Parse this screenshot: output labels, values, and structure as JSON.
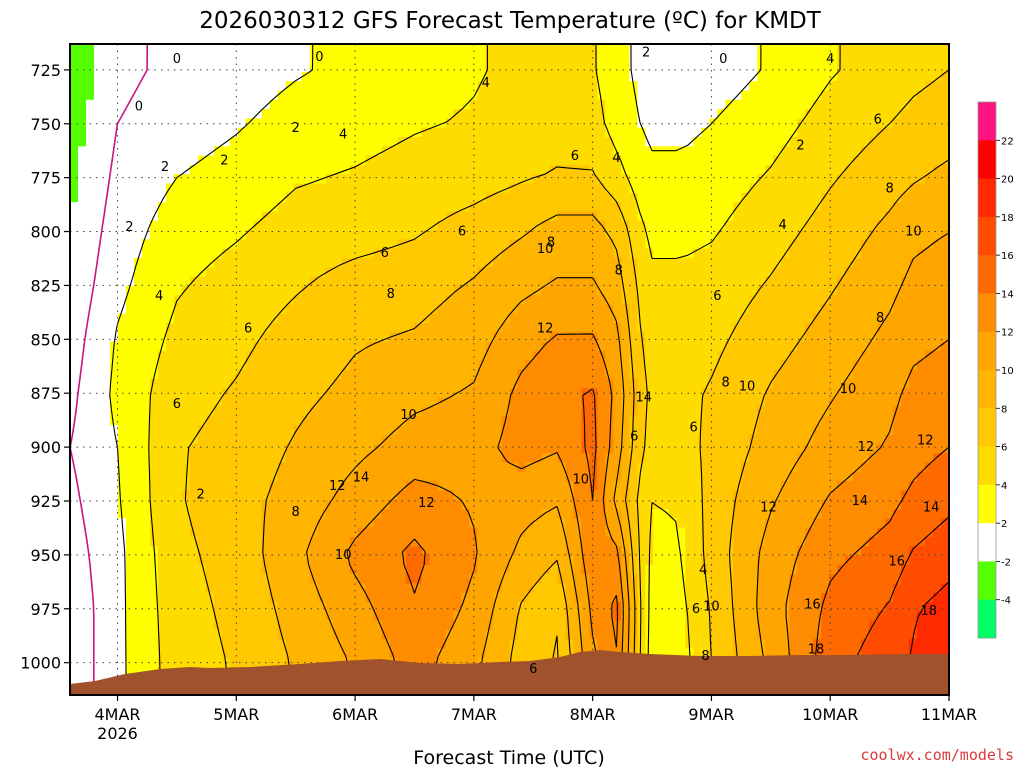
{
  "chart_data": {
    "type": "heatmap",
    "title": "2026030312 GFS Forecast Temperature (ºC) for KMDT",
    "xlabel": "Forecast Time (UTC)",
    "ylabel": "",
    "credit": "coolwx.com/models",
    "x_ticks": [
      {
        "day": 3.5,
        "label": "4MAR",
        "sub": "2026"
      },
      {
        "day": 4.5,
        "label": "5MAR",
        "sub": ""
      },
      {
        "day": 5.5,
        "label": "6MAR",
        "sub": ""
      },
      {
        "day": 6.5,
        "label": "7MAR",
        "sub": ""
      },
      {
        "day": 7.5,
        "label": "8MAR",
        "sub": ""
      },
      {
        "day": 8.5,
        "label": "9MAR",
        "sub": ""
      },
      {
        "day": 9.5,
        "label": "10MAR",
        "sub": ""
      },
      {
        "day": 10.5,
        "label": "11MAR",
        "sub": ""
      }
    ],
    "y_ticks": [
      "725",
      "750",
      "775",
      "800",
      "825",
      "850",
      "875",
      "900",
      "925",
      "950",
      "975",
      "1000"
    ],
    "y_values": [
      725,
      750,
      775,
      800,
      825,
      850,
      875,
      900,
      925,
      950,
      975,
      1000
    ],
    "xlim": [
      3.1,
      10.5
    ],
    "ylim": [
      713,
      1015
    ],
    "yaxis_inverted": true,
    "grid": true,
    "colorbar": {
      "labels": [
        "22",
        "20",
        "18",
        "16",
        "14",
        "12",
        "10",
        "8",
        "6",
        "4",
        "2",
        "-2",
        "-4"
      ],
      "colors": [
        "#ff1480",
        "#ff0000",
        "#ff2a00",
        "#ff4c00",
        "#ff6a00",
        "#ff8c00",
        "#ffa500",
        "#ffb400",
        "#ffc800",
        "#ffdc00",
        "#ffff00",
        "#ffffff",
        "#55ff00",
        "#00ff66"
      ]
    },
    "temperature_days": [
      3.1,
      3.5,
      4.0,
      4.5,
      5.0,
      5.5,
      6.0,
      6.5,
      6.9,
      7.2,
      7.5,
      7.7,
      7.9,
      8.0,
      8.25,
      8.5,
      9.0,
      9.5,
      10.0,
      10.2,
      10.5
    ],
    "temperature_levels": [
      725,
      750,
      775,
      800,
      825,
      850,
      875,
      900,
      925,
      950,
      975,
      1000
    ],
    "temperature_celsius": [
      [
        -3.5,
        -0.5,
        0.5,
        1.0,
        1.8,
        2.5,
        3.2,
        3.8,
        4.5,
        4.8,
        4.2,
        2.8,
        1.5,
        1.0,
        0.5,
        1.0,
        2.2,
        3.8,
        5.0,
        5.5,
        6.0
      ],
      [
        -3.0,
        0.0,
        1.0,
        1.8,
        2.8,
        3.2,
        3.8,
        4.2,
        4.8,
        5.2,
        4.8,
        3.2,
        2.0,
        1.5,
        1.5,
        2.0,
        3.2,
        4.8,
        6.0,
        6.5,
        7.0
      ],
      [
        -2.5,
        0.5,
        2.0,
        2.8,
        3.8,
        4.2,
        4.8,
        5.2,
        5.8,
        6.2,
        6.2,
        4.8,
        3.0,
        2.5,
        2.5,
        3.0,
        4.2,
        5.8,
        7.2,
        7.8,
        8.5
      ],
      [
        -2.0,
        1.0,
        3.0,
        3.8,
        4.8,
        5.2,
        5.8,
        6.8,
        7.8,
        8.8,
        8.8,
        7.5,
        4.5,
        3.5,
        3.5,
        3.8,
        5.2,
        6.8,
        8.5,
        9.5,
        10.0
      ],
      [
        -1.5,
        1.5,
        3.8,
        4.8,
        5.8,
        6.8,
        7.2,
        8.2,
        9.5,
        10.2,
        10.2,
        9.0,
        5.5,
        4.5,
        4.5,
        4.8,
        6.2,
        7.8,
        9.5,
        10.5,
        11.0
      ],
      [
        -1.0,
        2.2,
        4.5,
        5.5,
        6.8,
        7.8,
        8.2,
        9.2,
        11.2,
        12.2,
        12.2,
        10.5,
        6.2,
        5.0,
        5.0,
        5.5,
        7.2,
        8.8,
        10.5,
        11.5,
        12.0
      ],
      [
        -0.5,
        2.5,
        5.2,
        6.2,
        7.5,
        8.5,
        9.5,
        10.2,
        12.5,
        13.5,
        14.2,
        11.5,
        6.8,
        5.5,
        5.5,
        6.2,
        8.2,
        9.8,
        11.5,
        12.5,
        13.0
      ],
      [
        0.0,
        2.0,
        5.8,
        6.8,
        8.2,
        9.5,
        10.8,
        11.2,
        12.8,
        12.2,
        14.5,
        11.0,
        6.5,
        5.2,
        5.2,
        6.5,
        8.8,
        10.8,
        12.2,
        13.2,
        14.0
      ],
      [
        -0.5,
        1.8,
        5.8,
        7.2,
        8.8,
        10.8,
        12.8,
        11.8,
        10.8,
        10.2,
        14.0,
        9.5,
        5.5,
        4.0,
        4.2,
        6.8,
        9.8,
        12.2,
        13.5,
        14.5,
        15.5
      ],
      [
        -1.0,
        1.5,
        5.5,
        6.8,
        9.5,
        12.5,
        14.5,
        12.2,
        9.5,
        8.2,
        13.5,
        12.5,
        5.8,
        3.5,
        3.8,
        6.8,
        10.8,
        13.5,
        14.8,
        16.2,
        17.2
      ],
      [
        -1.5,
        1.5,
        5.2,
        6.5,
        8.8,
        11.2,
        13.8,
        11.5,
        7.8,
        6.2,
        12.5,
        14.5,
        6.2,
        3.2,
        3.5,
        6.2,
        11.2,
        14.5,
        16.2,
        17.8,
        18.8
      ],
      [
        -1.5,
        1.5,
        5.0,
        6.2,
        8.2,
        10.2,
        12.8,
        10.5,
        7.2,
        5.8,
        11.5,
        13.8,
        6.0,
        3.0,
        3.2,
        6.0,
        10.5,
        15.2,
        17.2,
        18.2,
        19.5
      ]
    ]
  }
}
